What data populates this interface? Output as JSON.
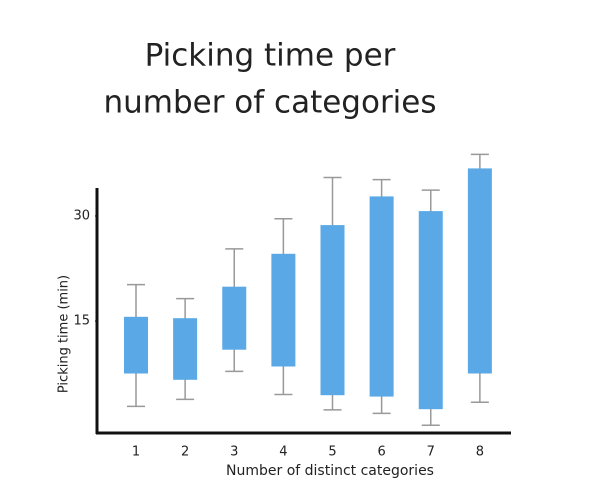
{
  "chart_data": {
    "type": "box",
    "title": [
      "Picking time per",
      "number of categories"
    ],
    "x_label": "Number of distinct categories",
    "y_label": "Picking time (min)",
    "categories": [
      "1",
      "2",
      "3",
      "4",
      "5",
      "6",
      "7",
      "8"
    ],
    "box_top": [
      15.6,
      15.4,
      19.9,
      24.6,
      28.7,
      32.8,
      30.7,
      36.8
    ],
    "box_bottom": [
      7.5,
      6.6,
      10.9,
      8.5,
      4.4,
      4.2,
      2.4,
      7.5
    ],
    "whisker_high": [
      20.2,
      18.2,
      25.3,
      29.6,
      35.5,
      35.2,
      33.7,
      38.8
    ],
    "whisker_low": [
      2.8,
      3.8,
      7.8,
      4.5,
      2.3,
      1.8,
      0.1,
      3.4
    ],
    "color": "#5aa9e6",
    "whisker_color": "#999999",
    "ylim": [
      -1,
      34
    ],
    "yticks": [
      15,
      30
    ]
  }
}
